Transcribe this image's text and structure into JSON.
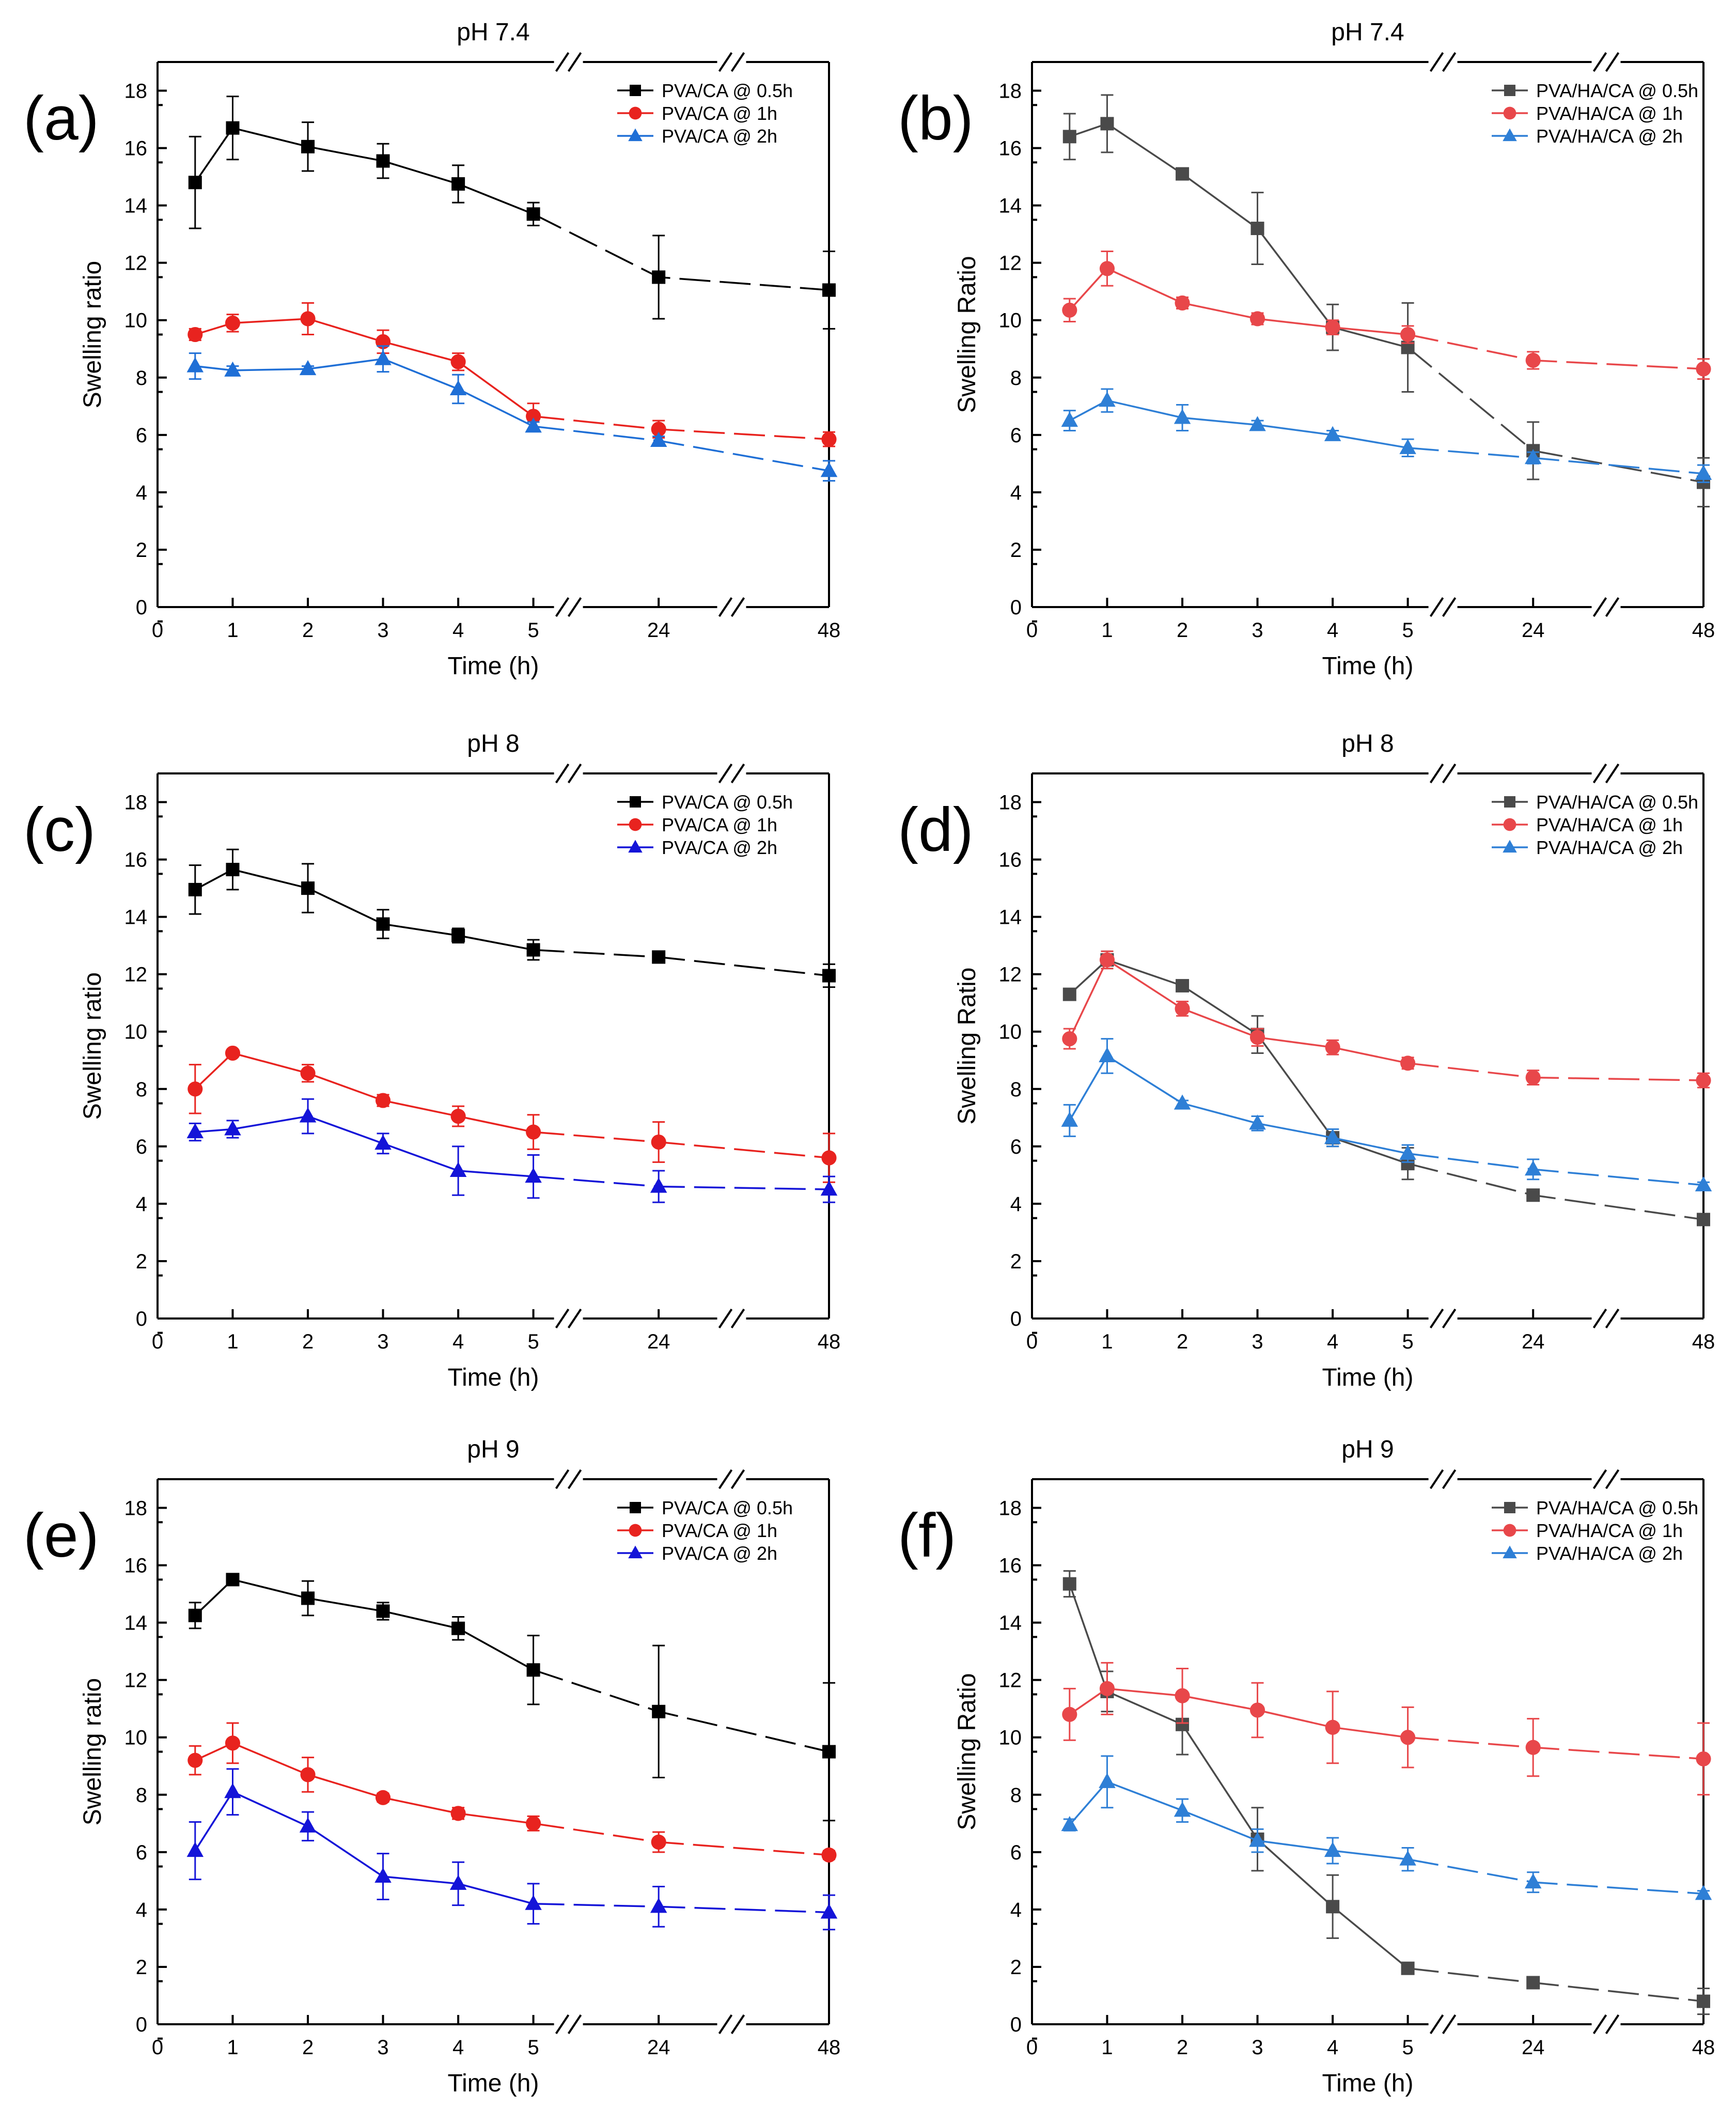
{
  "chart_data": [
    {
      "type": "line",
      "panel_label": "(a)",
      "title": "pH 7.4",
      "xlabel": "Time (h)",
      "ylabel": "Swelling ratio",
      "x_ticks": [
        "0",
        "1",
        "2",
        "3",
        "4",
        "5",
        "24",
        "48"
      ],
      "y_ticks": [
        "0",
        "2",
        "4",
        "6",
        "8",
        "10",
        "12",
        "14",
        "16",
        "18"
      ],
      "ylim": [
        0,
        19
      ],
      "x": [
        0.5,
        1,
        2,
        3,
        4,
        5,
        24,
        48
      ],
      "legend_position": "top-right",
      "series": [
        {
          "name": "PVA/CA @ 0.5h",
          "color": "#000000",
          "marker": "square",
          "values": [
            14.8,
            16.7,
            16.05,
            15.55,
            14.75,
            13.7,
            11.5,
            11.05
          ],
          "errors": [
            1.6,
            1.1,
            0.85,
            0.6,
            0.65,
            0.4,
            1.45,
            1.35
          ]
        },
        {
          "name": "PVA/CA @ 1h",
          "color": "#e8231f",
          "marker": "circle",
          "values": [
            9.5,
            9.9,
            10.05,
            9.25,
            8.55,
            6.65,
            6.2,
            5.85
          ],
          "errors": [
            0.2,
            0.3,
            0.55,
            0.4,
            0.3,
            0.45,
            0.3,
            0.25
          ]
        },
        {
          "name": "PVA/CA @ 2h",
          "color": "#1f6fd6",
          "marker": "triangle",
          "values": [
            8.4,
            8.25,
            8.3,
            8.65,
            7.6,
            6.3,
            5.8,
            4.75
          ],
          "errors": [
            0.45,
            0.15,
            0.1,
            0.45,
            0.5,
            0.15,
            0.15,
            0.35
          ]
        }
      ]
    },
    {
      "type": "line",
      "panel_label": "(b)",
      "title": "pH 7.4",
      "xlabel": "Time (h)",
      "ylabel": "Swelling Ratio",
      "x_ticks": [
        "0",
        "1",
        "2",
        "3",
        "4",
        "5",
        "24",
        "48"
      ],
      "y_ticks": [
        "0",
        "2",
        "4",
        "6",
        "8",
        "10",
        "12",
        "14",
        "16",
        "18"
      ],
      "ylim": [
        0,
        19
      ],
      "x": [
        0.5,
        1,
        2,
        3,
        4,
        5,
        24,
        48
      ],
      "legend_position": "top-right",
      "series": [
        {
          "name": "PVA/HA/CA @ 0.5h",
          "color": "#4a4a4a",
          "marker": "square",
          "values": [
            16.4,
            16.85,
            15.1,
            13.2,
            9.75,
            9.05,
            5.45,
            4.35
          ],
          "errors": [
            0.8,
            1.0,
            0.1,
            1.25,
            0.8,
            1.55,
            1.0,
            0.85
          ]
        },
        {
          "name": "PVA/HA/CA @ 1h",
          "color": "#e8474a",
          "marker": "circle",
          "values": [
            10.35,
            11.8,
            10.6,
            10.05,
            9.75,
            9.5,
            8.6,
            8.3
          ],
          "errors": [
            0.4,
            0.6,
            0.2,
            0.2,
            0.25,
            0.3,
            0.3,
            0.35
          ]
        },
        {
          "name": "PVA/HA/CA @ 2h",
          "color": "#2e7fd6",
          "marker": "triangle",
          "values": [
            6.5,
            7.2,
            6.6,
            6.35,
            6.0,
            5.55,
            5.2,
            4.65
          ],
          "errors": [
            0.35,
            0.4,
            0.45,
            0.15,
            0.15,
            0.3,
            0.2,
            0.3
          ]
        }
      ]
    },
    {
      "type": "line",
      "panel_label": "(c)",
      "title": "pH 8",
      "xlabel": "Time (h)",
      "ylabel": "Swelling ratio",
      "x_ticks": [
        "0",
        "1",
        "2",
        "3",
        "4",
        "5",
        "24",
        "48"
      ],
      "y_ticks": [
        "0",
        "2",
        "4",
        "6",
        "8",
        "10",
        "12",
        "14",
        "16",
        "18"
      ],
      "ylim": [
        0,
        19
      ],
      "x": [
        0.5,
        1,
        2,
        3,
        4,
        5,
        24,
        48
      ],
      "legend_position": "top-right",
      "series": [
        {
          "name": "PVA/CA @ 0.5h",
          "color": "#000000",
          "marker": "square",
          "values": [
            14.95,
            15.65,
            15.0,
            13.75,
            13.35,
            12.85,
            12.6,
            11.95
          ],
          "errors": [
            0.85,
            0.7,
            0.85,
            0.5,
            0.25,
            0.35,
            0.1,
            0.4
          ]
        },
        {
          "name": "PVA/CA @ 1h",
          "color": "#e8231f",
          "marker": "circle",
          "values": [
            8.0,
            9.25,
            8.55,
            7.6,
            7.05,
            6.5,
            6.15,
            5.6
          ],
          "errors": [
            0.85,
            0.1,
            0.3,
            0.2,
            0.35,
            0.6,
            0.7,
            0.85
          ]
        },
        {
          "name": "PVA/CA @ 2h",
          "color": "#1414d8",
          "marker": "triangle",
          "values": [
            6.5,
            6.6,
            7.05,
            6.1,
            5.15,
            4.95,
            4.6,
            4.5
          ],
          "errors": [
            0.3,
            0.3,
            0.6,
            0.35,
            0.85,
            0.75,
            0.55,
            0.45
          ]
        }
      ]
    },
    {
      "type": "line",
      "panel_label": "(d)",
      "title": "pH 8",
      "xlabel": "Time (h)",
      "ylabel": "Swelling Ratio",
      "x_ticks": [
        "0",
        "1",
        "2",
        "3",
        "4",
        "5",
        "24",
        "48"
      ],
      "y_ticks": [
        "0",
        "2",
        "4",
        "6",
        "8",
        "10",
        "12",
        "14",
        "16",
        "18"
      ],
      "ylim": [
        0,
        19
      ],
      "x": [
        0.5,
        1,
        2,
        3,
        4,
        5,
        24,
        48
      ],
      "legend_position": "top-right",
      "series": [
        {
          "name": "PVA/HA/CA @ 0.5h",
          "color": "#4a4a4a",
          "marker": "square",
          "values": [
            11.3,
            12.5,
            11.6,
            9.9,
            6.3,
            5.4,
            4.3,
            3.45
          ],
          "errors": [
            0.1,
            0.3,
            0.1,
            0.65,
            0.3,
            0.55,
            0.1,
            0.1
          ]
        },
        {
          "name": "PVA/HA/CA @ 1h",
          "color": "#e8474a",
          "marker": "circle",
          "values": [
            9.75,
            12.5,
            10.8,
            9.8,
            9.45,
            8.9,
            8.4,
            8.3
          ],
          "errors": [
            0.35,
            0.3,
            0.25,
            0.3,
            0.25,
            0.2,
            0.25,
            0.25
          ]
        },
        {
          "name": "PVA/HA/CA @ 2h",
          "color": "#2e7fd6",
          "marker": "triangle",
          "values": [
            6.9,
            9.15,
            7.5,
            6.8,
            6.3,
            5.75,
            5.2,
            4.65
          ],
          "errors": [
            0.55,
            0.6,
            0.1,
            0.25,
            0.3,
            0.3,
            0.35,
            0.1
          ]
        }
      ]
    },
    {
      "type": "line",
      "panel_label": "(e)",
      "title": "pH 9",
      "xlabel": "Time (h)",
      "ylabel": "Swelling ratio",
      "x_ticks": [
        "0",
        "1",
        "2",
        "3",
        "4",
        "5",
        "24",
        "48"
      ],
      "y_ticks": [
        "0",
        "2",
        "4",
        "6",
        "8",
        "10",
        "12",
        "14",
        "16",
        "18"
      ],
      "ylim": [
        0,
        19
      ],
      "x": [
        0.5,
        1,
        2,
        3,
        4,
        5,
        24,
        48
      ],
      "legend_position": "top-right",
      "series": [
        {
          "name": "PVA/CA @ 0.5h",
          "color": "#000000",
          "marker": "square",
          "values": [
            14.25,
            15.5,
            14.85,
            14.4,
            13.8,
            12.35,
            10.9,
            9.5
          ],
          "errors": [
            0.45,
            0.1,
            0.6,
            0.3,
            0.4,
            1.2,
            2.3,
            2.4
          ]
        },
        {
          "name": "PVA/CA @ 1h",
          "color": "#e8231f",
          "marker": "circle",
          "values": [
            9.2,
            9.8,
            8.7,
            7.9,
            7.35,
            7.0,
            6.35,
            5.9
          ],
          "errors": [
            0.5,
            0.7,
            0.6,
            0.15,
            0.2,
            0.25,
            0.35,
            0.15
          ]
        },
        {
          "name": "PVA/CA @ 2h",
          "color": "#1414d8",
          "marker": "triangle",
          "values": [
            6.05,
            8.1,
            6.9,
            5.15,
            4.9,
            4.2,
            4.1,
            3.9
          ],
          "errors": [
            1.0,
            0.8,
            0.5,
            0.8,
            0.75,
            0.7,
            0.7,
            0.6
          ]
        }
      ]
    },
    {
      "type": "line",
      "panel_label": "(f)",
      "title": "pH 9",
      "xlabel": "Time (h)",
      "ylabel": "Swelling Ratio",
      "x_ticks": [
        "0",
        "1",
        "2",
        "3",
        "4",
        "5",
        "24",
        "48"
      ],
      "y_ticks": [
        "0",
        "2",
        "4",
        "6",
        "8",
        "10",
        "12",
        "14",
        "16",
        "18"
      ],
      "ylim": [
        0,
        19
      ],
      "x": [
        0.5,
        1,
        2,
        3,
        4,
        5,
        24,
        48
      ],
      "legend_position": "top-right",
      "series": [
        {
          "name": "PVA/HA/CA @ 0.5h",
          "color": "#4a4a4a",
          "marker": "square",
          "values": [
            15.35,
            11.6,
            10.45,
            6.45,
            4.1,
            1.95,
            1.45,
            0.8
          ],
          "errors": [
            0.45,
            0.7,
            1.05,
            1.1,
            1.1,
            0.1,
            0.2,
            0.45
          ]
        },
        {
          "name": "PVA/HA/CA @ 1h",
          "color": "#e8474a",
          "marker": "circle",
          "values": [
            10.8,
            11.7,
            11.45,
            10.95,
            10.35,
            10.0,
            9.65,
            9.25
          ],
          "errors": [
            0.9,
            0.9,
            0.95,
            0.95,
            1.25,
            1.05,
            1.0,
            1.25
          ]
        },
        {
          "name": "PVA/HA/CA @ 2h",
          "color": "#2e7fd6",
          "marker": "triangle",
          "values": [
            6.95,
            8.45,
            7.45,
            6.4,
            6.05,
            5.75,
            4.95,
            4.55
          ],
          "errors": [
            0.2,
            0.9,
            0.4,
            0.4,
            0.45,
            0.4,
            0.35,
            0.1
          ]
        }
      ]
    }
  ]
}
